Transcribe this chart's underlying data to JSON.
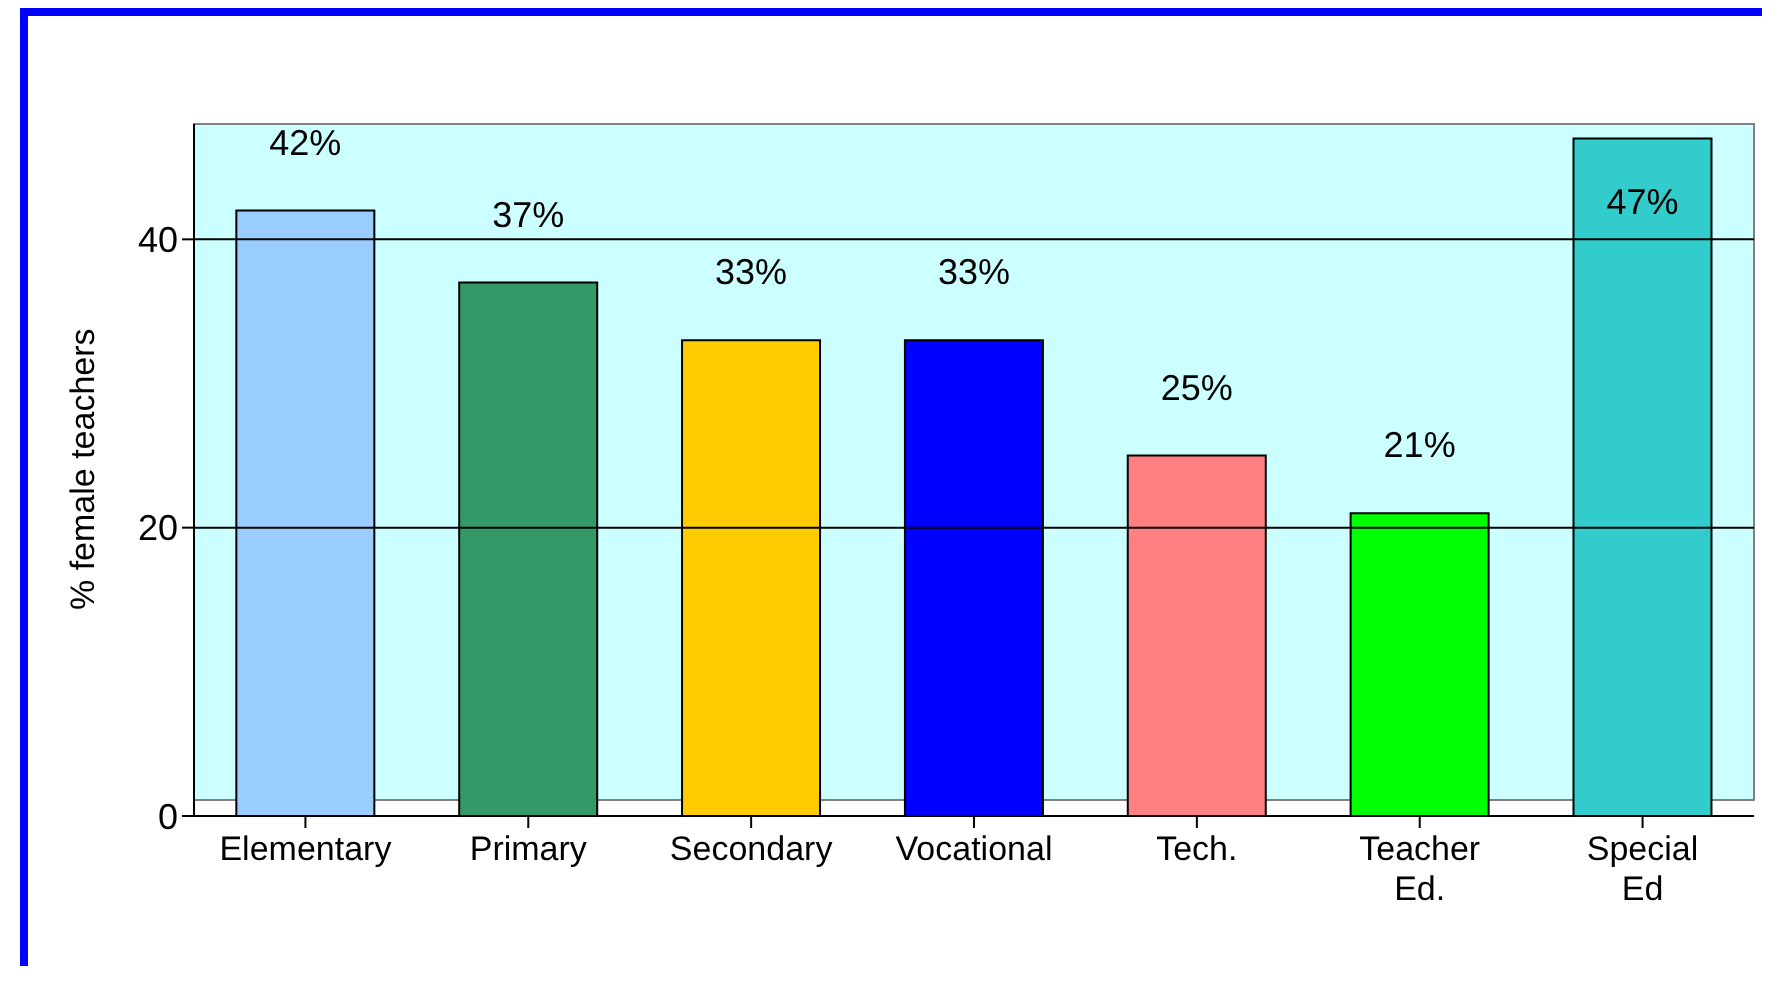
{
  "chart_data": {
    "type": "bar",
    "ylabel": "% female teachers",
    "categories": [
      "Elementary",
      "Primary",
      "Secondary",
      "Vocational",
      "Tech.",
      "Teacher Ed.",
      "Special Ed"
    ],
    "values": [
      42,
      37,
      33,
      33,
      25,
      21,
      47
    ],
    "colors": [
      "#99ccff",
      "#339966",
      "#ffcc00",
      "#0000ff",
      "#ff8080",
      "#00ff00",
      "#33cccc"
    ],
    "value_labels": [
      "42%",
      "37%",
      "33%",
      "33%",
      "25%",
      "21%",
      "47%"
    ],
    "ylim": [
      0,
      48
    ],
    "yticks": [
      0,
      20,
      40
    ],
    "grid": "y"
  }
}
